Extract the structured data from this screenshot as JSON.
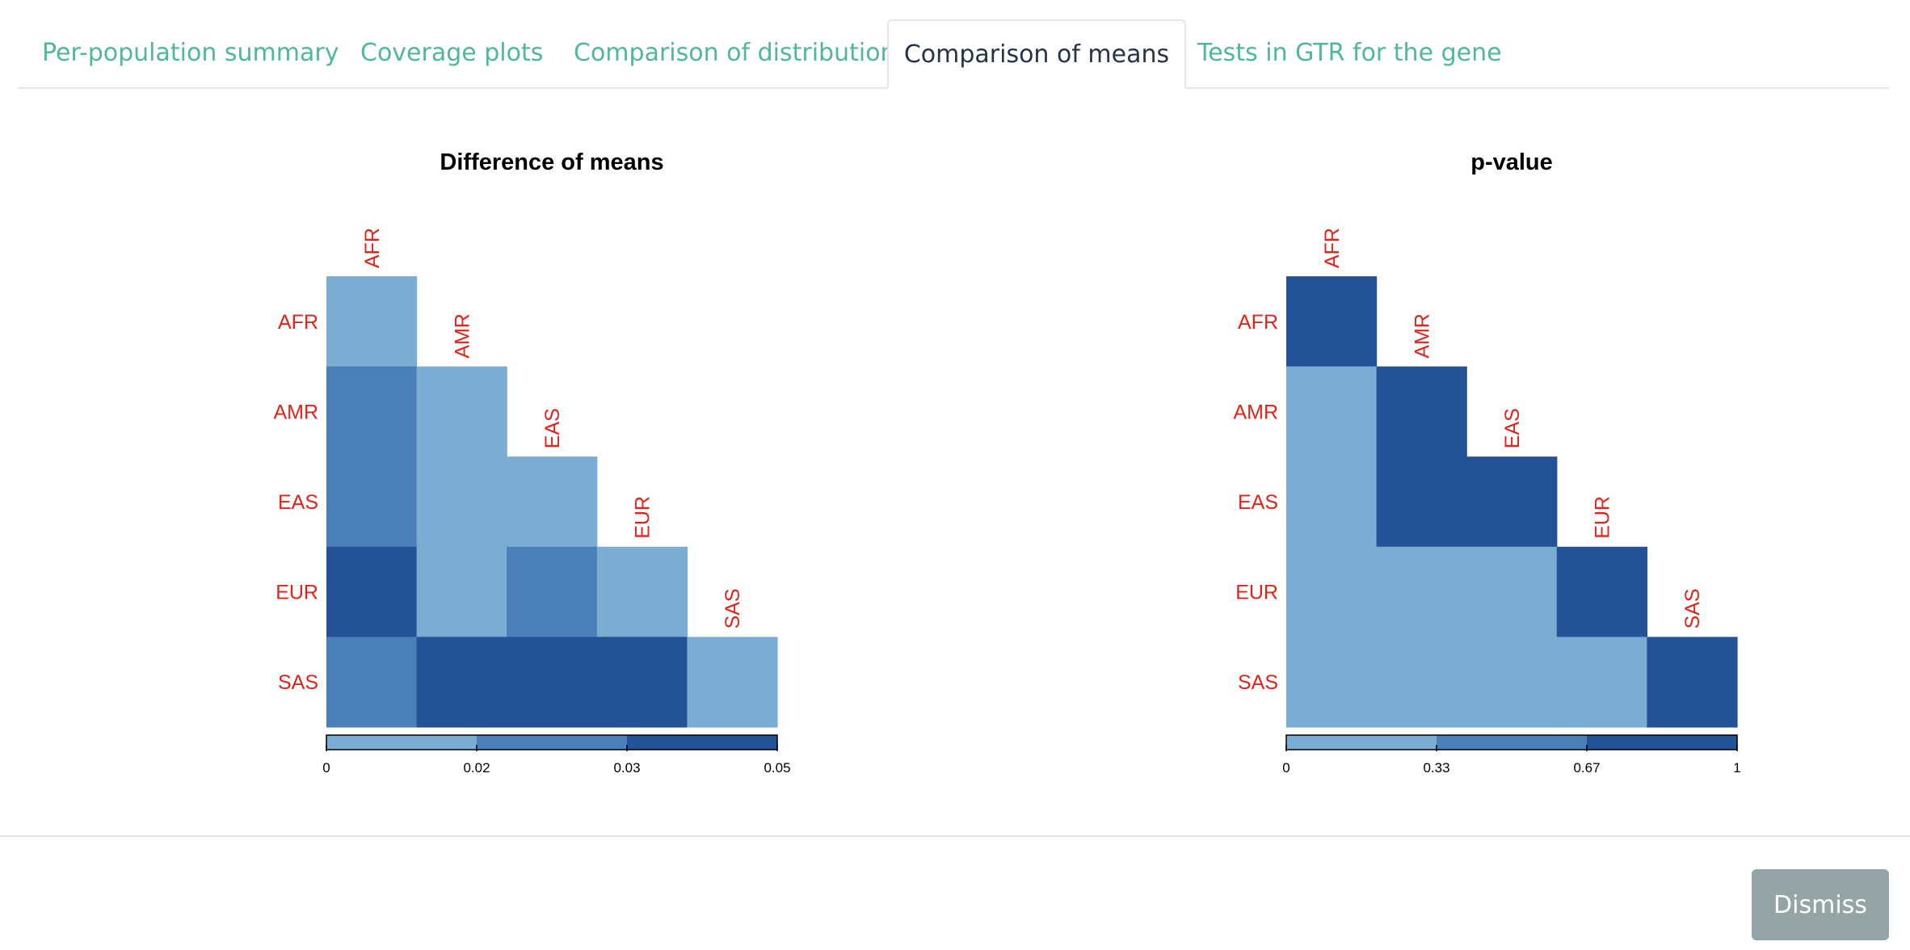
{
  "tabs": [
    {
      "label": "Per-population summary",
      "active": false
    },
    {
      "label": "Coverage plots",
      "active": false
    },
    {
      "label": "Comparison of distribution",
      "active": false
    },
    {
      "label": "Comparison of means",
      "active": true
    },
    {
      "label": "Tests in GTR for the gene",
      "active": false
    }
  ],
  "colors": {
    "tab_link": "#4fb896",
    "tab_active": "#253447",
    "label_red": "#e2231a",
    "scale": [
      "#7badd3",
      "#4a7fb8",
      "#235297"
    ]
  },
  "chart_data": [
    {
      "type": "heatmap",
      "title": "Difference of means",
      "populations": [
        "AFR",
        "AMR",
        "EAS",
        "EUR",
        "SAS"
      ],
      "cell_levels": [
        [
          0
        ],
        [
          1,
          0
        ],
        [
          1,
          0,
          0
        ],
        [
          2,
          0,
          1,
          0
        ],
        [
          1,
          2,
          2,
          2,
          0
        ]
      ],
      "legend_ticks": [
        "0",
        "0.02",
        "0.03",
        "0.05"
      ],
      "legend_range": [
        0,
        0.05
      ]
    },
    {
      "type": "heatmap",
      "title": "p-value",
      "populations": [
        "AFR",
        "AMR",
        "EAS",
        "EUR",
        "SAS"
      ],
      "cell_levels": [
        [
          2
        ],
        [
          0,
          2
        ],
        [
          0,
          2,
          2
        ],
        [
          0,
          0,
          0,
          2
        ],
        [
          0,
          0,
          0,
          0,
          2
        ]
      ],
      "legend_ticks": [
        "0",
        "0.33",
        "0.67",
        "1"
      ],
      "legend_range": [
        0,
        1
      ]
    }
  ],
  "footer": {
    "dismiss_label": "Dismiss"
  }
}
